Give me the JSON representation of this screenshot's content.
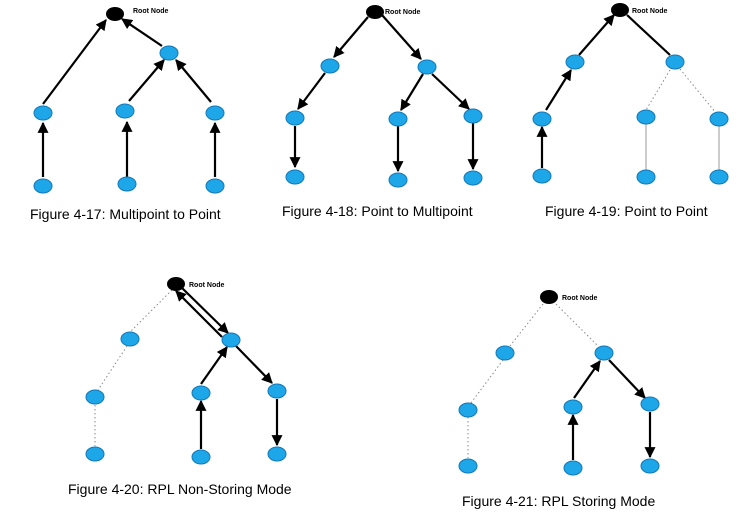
{
  "colors": {
    "node": "#1ea7e8",
    "root": "#000000",
    "arrow": "#000000",
    "link": "#8a8a8a"
  },
  "figures": [
    {
      "id": "fig-4-17",
      "caption": "Figure 4-17: Multipoint to Point",
      "root_label": "Root Node"
    },
    {
      "id": "fig-4-18",
      "caption": "Figure 4-18: Point to Multipoint",
      "root_label": "Root Node"
    },
    {
      "id": "fig-4-19",
      "caption": "Figure 4-19: Point to Point",
      "root_label": "Root Node"
    },
    {
      "id": "fig-4-20",
      "caption": "Figure 4-20: RPL Non-Storing Mode",
      "root_label": "Root Node"
    },
    {
      "id": "fig-4-21",
      "caption": "Figure 4-21: RPL Storing Mode",
      "root_label": "Root Node"
    }
  ]
}
